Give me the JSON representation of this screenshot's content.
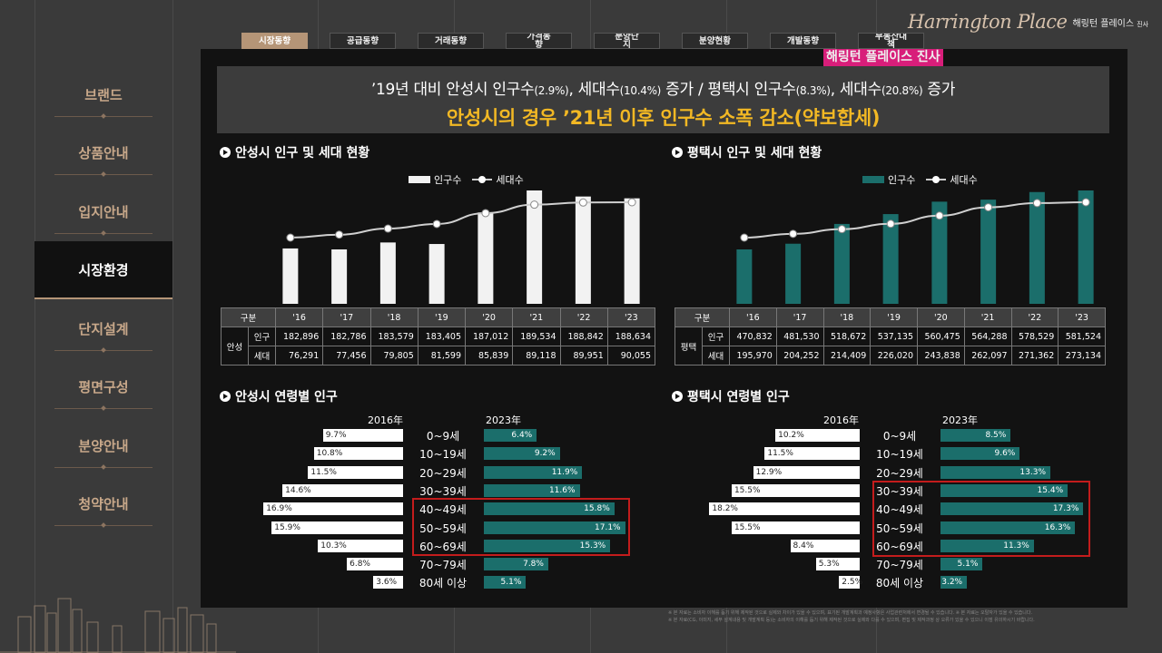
{
  "nav": [
    "브랜드",
    "상품안내",
    "입지안내",
    "시장환경",
    "단지설계",
    "평면구성",
    "분양안내",
    "청약안내"
  ],
  "nav_active": 3,
  "tabs": [
    "시장동향",
    "공급동향",
    "거래동향",
    "가격동\n향",
    "분양단\n지",
    "분양현황",
    "개발동향",
    "부동산대\n책"
  ],
  "tab_active": 0,
  "logo": {
    "script": "Harrington Place",
    "ko": "해링턴 플레이스",
    "small": "진사"
  },
  "watermark": "해링턴 플레이스 진사",
  "headline": {
    "l1a": "’19년 대비 안성시 인구수",
    "l1b": "(2.9%)",
    "l1c": ", 세대수",
    "l1d": "(10.4%)",
    "l1e": " 증가 / 평택시 인구수",
    "l1f": "(8.3%)",
    "l1g": ", 세대수",
    "l1h": "(20.8%)",
    "l1i": " 증가",
    "l2": "안성시의 경우 ’21년 이후 인구수 소폭 감소(약보합세)"
  },
  "colors": {
    "anseong_bar": "#f2f2f2",
    "pyeongtaek_bar": "#1b6e6b",
    "right_bar": "#1b6e6b",
    "highlight": "#c31c1c",
    "headline_accent": "#f2b824"
  },
  "charts": {
    "anseong": {
      "title": "안성시 인구 및 세대 현황",
      "legend_bar": "인구수",
      "legend_line": "세대수"
    },
    "pyeongtaek": {
      "title": "평택시 인구 및 세대 현황",
      "legend_bar": "인구수",
      "legend_line": "세대수"
    }
  },
  "chart_data": [
    {
      "type": "bar",
      "categories": [
        "'16",
        "'17",
        "'18",
        "'19",
        "'20",
        "'21",
        "'22",
        "'23"
      ],
      "series": [
        {
          "name": "인구수",
          "values": [
            182896,
            182786,
            183579,
            183405,
            187012,
            189534,
            188842,
            188634
          ]
        },
        {
          "name": "세대수",
          "values": [
            76291,
            77456,
            79805,
            81599,
            85839,
            89118,
            89951,
            90055
          ]
        }
      ]
    },
    {
      "type": "bar",
      "categories": [
        "'16",
        "'17",
        "'18",
        "'19",
        "'20",
        "'21",
        "'22",
        "'23"
      ],
      "series": [
        {
          "name": "인구수",
          "values": [
            470832,
            481530,
            518672,
            537135,
            560475,
            564288,
            578529,
            581524
          ]
        },
        {
          "name": "세대수",
          "values": [
            195970,
            204252,
            214409,
            226020,
            243838,
            262097,
            271362,
            273134
          ]
        }
      ]
    },
    {
      "type": "bar",
      "categories": [
        "0~9세",
        "10~19세",
        "20~29세",
        "30~39세",
        "40~49세",
        "50~59세",
        "60~69세",
        "70~79세",
        "80세 이상"
      ],
      "series": [
        {
          "name": "2016年",
          "values": [
            9.7,
            10.8,
            11.5,
            14.6,
            16.9,
            15.9,
            10.3,
            6.8,
            3.6
          ]
        },
        {
          "name": "2023年",
          "values": [
            6.4,
            9.2,
            11.9,
            11.6,
            15.8,
            17.1,
            15.3,
            7.8,
            5.1
          ]
        }
      ]
    },
    {
      "type": "bar",
      "categories": [
        "0~9세",
        "10~19세",
        "20~29세",
        "30~39세",
        "40~49세",
        "50~59세",
        "60~69세",
        "70~79세",
        "80세 이상"
      ],
      "series": [
        {
          "name": "2016年",
          "values": [
            10.2,
            11.5,
            12.9,
            15.5,
            18.2,
            15.5,
            8.4,
            5.3,
            2.5
          ]
        },
        {
          "name": "2023年",
          "values": [
            8.5,
            9.6,
            13.3,
            15.4,
            17.3,
            16.3,
            11.3,
            5.1,
            3.2
          ]
        }
      ]
    }
  ],
  "tables": {
    "anseong": {
      "h0": "구분",
      "region": "안성",
      "row1": "인구",
      "row2": "세대"
    },
    "pyeongtaek": {
      "h0": "구분",
      "region": "평택",
      "row1": "인구",
      "row2": "세대"
    }
  },
  "fmt": {
    "anseong_pop": [
      "182,896",
      "182,786",
      "183,579",
      "183,405",
      "187,012",
      "189,534",
      "188,842",
      "188,634"
    ],
    "anseong_hh": [
      "76,291",
      "77,456",
      "79,805",
      "81,599",
      "85,839",
      "89,118",
      "89,951",
      "90,055"
    ],
    "pt_pop": [
      "470,832",
      "481,530",
      "518,672",
      "537,135",
      "560,475",
      "564,288",
      "578,529",
      "581,524"
    ],
    "pt_hh": [
      "195,970",
      "204,252",
      "214,409",
      "226,020",
      "243,838",
      "262,097",
      "271,362",
      "273,134"
    ],
    "a16": [
      "9.7%",
      "10.8%",
      "11.5%",
      "14.6%",
      "16.9%",
      "15.9%",
      "10.3%",
      "6.8%",
      "3.6%"
    ],
    "a23": [
      "6.4%",
      "9.2%",
      "11.9%",
      "11.6%",
      "15.8%",
      "17.1%",
      "15.3%",
      "7.8%",
      "5.1%"
    ],
    "p16": [
      "10.2%",
      "11.5%",
      "12.9%",
      "15.5%",
      "18.2%",
      "15.5%",
      "8.4%",
      "5.3%",
      "2.5%"
    ],
    "p23": [
      "8.5%",
      "9.6%",
      "13.3%",
      "15.4%",
      "17.3%",
      "16.3%",
      "11.3%",
      "5.1%",
      "3.2%"
    ]
  },
  "age_titles": {
    "anseong": "안성시 연령별 인구",
    "pyeongtaek": "평택시 연령별 인구",
    "y16": "2016年",
    "y23": "2023年"
  },
  "footnotes": [
    "※ 본 자료는 소비자 이해를 돕기 위해 제작된 것으로 실제와 차이가 있을 수 있으며, 표기된 개발계획과 예정사항은 사업관련처에서 변경될 수 있습니다.   ※ 본 자료는 오탈자가 있을 수 있습니다.",
    "※ 본 자료(CG, 이미지, 세부 설계내용 및 개발계획 등)는 소비자의 이해를 돕기 위해 제작된 것으로 실제와 다를 수 있으며, 편집 및 제작과정 상 오류가 있을 수 있으니 이점 유의하시기 바랍니다."
  ]
}
